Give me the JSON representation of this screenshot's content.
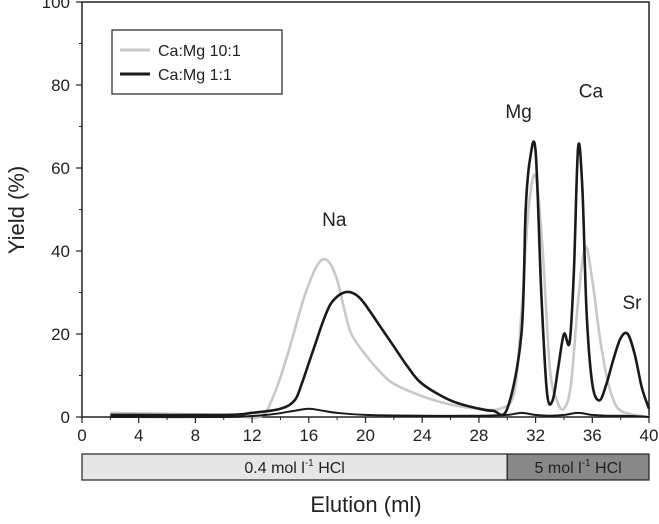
{
  "chart_data": {
    "type": "line",
    "xlabel": "Elution (ml)",
    "ylabel": "Yield (%)",
    "xlim": [
      0,
      40
    ],
    "ylim": [
      0,
      100
    ],
    "xticks": [
      0,
      4,
      8,
      12,
      16,
      20,
      24,
      28,
      32,
      36,
      40
    ],
    "yticks": [
      0,
      20,
      40,
      60,
      80,
      100
    ],
    "legend": {
      "placement": "top-left",
      "entries": [
        "Ca:Mg 10:1",
        "Ca:Mg 1:1"
      ]
    },
    "series": [
      {
        "name": "Ca:Mg 10:1",
        "color": "#c8c8c8",
        "x": [
          2,
          10,
          12.5,
          13.5,
          14.5,
          15.5,
          16,
          16.5,
          17,
          17.5,
          18,
          18.5,
          19,
          20,
          21,
          22,
          24,
          26,
          28,
          29.5,
          30.5,
          31,
          31.5,
          32,
          32.5,
          33,
          33.5,
          34,
          34.5,
          35,
          35.5,
          36,
          36.5,
          37,
          37.5,
          38,
          39,
          40
        ],
        "y": [
          1,
          0.5,
          0,
          5,
          15,
          27,
          32,
          36,
          38,
          37,
          33,
          26,
          20,
          15,
          11,
          8,
          5,
          3,
          2,
          2,
          6,
          25,
          50,
          58,
          40,
          12,
          4,
          2,
          8,
          28,
          41,
          33,
          20,
          10,
          4,
          1.5,
          0.5,
          0
        ]
      },
      {
        "name": "Ca:Mg 1:1",
        "color": "#1a1a1a",
        "x": [
          2,
          10,
          12,
          14,
          15,
          15.5,
          16,
          16.5,
          17,
          17.5,
          18,
          18.5,
          19,
          19.5,
          20,
          21,
          22,
          23,
          24,
          26,
          28,
          29,
          30,
          31,
          31.3,
          31.6,
          32,
          32.4,
          32.8,
          33.2,
          33.6,
          34,
          34.4,
          34.7,
          35,
          35.3,
          35.6,
          36,
          36.5,
          37,
          37.5,
          38,
          38.5,
          39,
          39.5,
          40
        ],
        "y": [
          0.5,
          0.5,
          1,
          2,
          4,
          8,
          13,
          18,
          23,
          27,
          29,
          30,
          30,
          29,
          27,
          22,
          17,
          12,
          8,
          4,
          2,
          1.5,
          2,
          20,
          50,
          62,
          64,
          30,
          6,
          4,
          12,
          20,
          18,
          35,
          65,
          55,
          25,
          8,
          4,
          8,
          14,
          19,
          20,
          15,
          7,
          2
        ]
      },
      {
        "name": "",
        "color": "#1a1a1a",
        "x": [
          2,
          10,
          13,
          15,
          16,
          17,
          18,
          20,
          24,
          28,
          30,
          31,
          32,
          33,
          34,
          35,
          36,
          37,
          38,
          39,
          40
        ],
        "y": [
          0,
          0,
          0.5,
          1.5,
          2,
          1.5,
          1,
          0.5,
          0.3,
          0.3,
          0.5,
          1,
          0.5,
          0.3,
          0.5,
          1,
          0.5,
          0.3,
          0.3,
          0.2,
          0
        ]
      }
    ],
    "annotations": [
      {
        "text": "Na",
        "x": 17.8,
        "y": 46
      },
      {
        "text": "Mg",
        "x": 30.8,
        "y": 72
      },
      {
        "text": "Ca",
        "x": 35.9,
        "y": 77
      },
      {
        "text": "Sr",
        "x": 38.8,
        "y": 26
      }
    ],
    "acid_bands": [
      {
        "text": "0.4 mol l",
        "sup": "-1",
        "suffix": " HCl",
        "from": 0,
        "to": 30,
        "color": "#e6e6e6"
      },
      {
        "text": "5 mol l",
        "sup": "-1",
        "suffix": " HCl",
        "from": 30,
        "to": 40,
        "color": "#888888"
      }
    ]
  }
}
